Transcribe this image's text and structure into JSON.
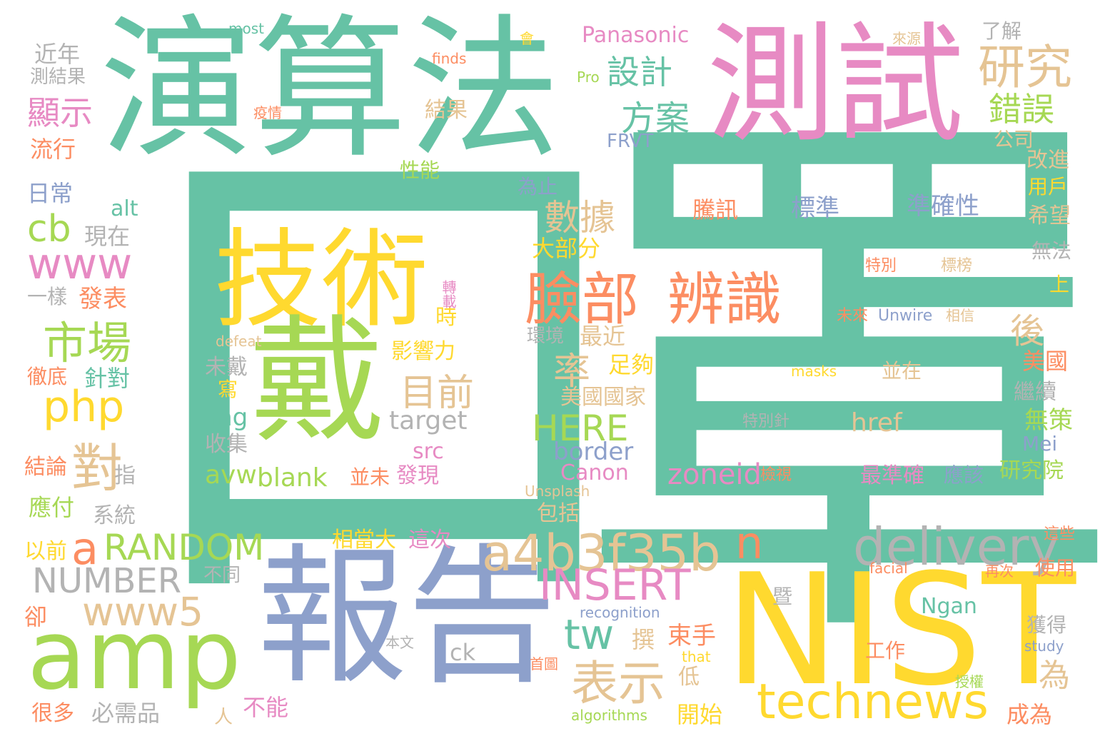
{
  "palette": {
    "green": "#66c2a5",
    "orange": "#fc8d62",
    "blue": "#8da0cb",
    "pink": "#e78ac3",
    "lime": "#a6d854",
    "yellow": "#ffd92f",
    "tan": "#e5c494",
    "gray": "#b3b3b3"
  },
  "words": [
    {
      "text": "口",
      "color": "green"
    },
    {
      "text": "罩",
      "color": "green"
    },
    {
      "text": "演算法",
      "color": "green"
    },
    {
      "text": "測試",
      "color": "pink"
    },
    {
      "text": "技術",
      "color": "yellow"
    },
    {
      "text": "戴",
      "color": "lime"
    },
    {
      "text": "報告",
      "color": "blue"
    },
    {
      "text": "NIST",
      "color": "yellow"
    },
    {
      "text": "amp",
      "color": "lime"
    },
    {
      "text": "臉部",
      "color": "orange"
    },
    {
      "text": "辨識",
      "color": "orange"
    },
    {
      "text": "technews",
      "color": "yellow"
    },
    {
      "text": "delivery",
      "color": "gray"
    },
    {
      "text": "a4b3f35b",
      "color": "tan"
    },
    {
      "text": "INSERT",
      "color": "pink"
    },
    {
      "text": "RANDOM",
      "color": "lime"
    },
    {
      "text": "NUMBER",
      "color": "gray"
    },
    {
      "text": "www5",
      "color": "tan"
    },
    {
      "text": "www",
      "color": "pink"
    },
    {
      "text": "php",
      "color": "yellow"
    },
    {
      "text": "cb",
      "color": "lime"
    },
    {
      "text": "市場",
      "color": "lime"
    },
    {
      "text": "研究",
      "color": "tan"
    },
    {
      "text": "錯誤",
      "color": "lime"
    },
    {
      "text": "設計",
      "color": "green"
    },
    {
      "text": "方案",
      "color": "green"
    },
    {
      "text": "數據",
      "color": "tan"
    },
    {
      "text": "顯示",
      "color": "pink"
    },
    {
      "text": "表示",
      "color": "tan"
    },
    {
      "text": "目前",
      "color": "tan"
    },
    {
      "text": "對",
      "color": "tan"
    },
    {
      "text": "tw",
      "color": "green"
    },
    {
      "text": "n",
      "color": "orange"
    },
    {
      "text": "a",
      "color": "orange"
    },
    {
      "text": "HERE",
      "color": "lime"
    },
    {
      "text": "率",
      "color": "tan"
    },
    {
      "text": "後",
      "color": "tan"
    },
    {
      "text": "zoneid",
      "color": "pink"
    },
    {
      "text": "target",
      "color": "gray"
    },
    {
      "text": "Panasonic",
      "color": "pink"
    },
    {
      "text": "border",
      "color": "blue"
    },
    {
      "text": "Canon",
      "color": "pink"
    },
    {
      "text": "href",
      "color": "tan"
    },
    {
      "text": "blank",
      "color": "lime"
    },
    {
      "text": "avw",
      "color": "lime"
    },
    {
      "text": "img",
      "color": "green"
    },
    {
      "text": "src",
      "color": "pink"
    },
    {
      "text": "Ngan",
      "color": "green"
    },
    {
      "text": "Mei",
      "color": "blue"
    },
    {
      "text": "ck",
      "color": "gray"
    },
    {
      "text": "alt",
      "color": "green"
    },
    {
      "text": "FRVT",
      "color": "blue"
    },
    {
      "text": "騰訊",
      "color": "orange"
    },
    {
      "text": "標準",
      "color": "blue"
    },
    {
      "text": "準確性",
      "color": "blue"
    },
    {
      "text": "近年",
      "color": "gray"
    },
    {
      "text": "測結果",
      "color": "gray"
    },
    {
      "text": "流行",
      "color": "orange"
    },
    {
      "text": "日常",
      "color": "blue"
    },
    {
      "text": "現在",
      "color": "gray"
    },
    {
      "text": "一樣",
      "color": "gray"
    },
    {
      "text": "發表",
      "color": "orange"
    },
    {
      "text": "徹底",
      "color": "orange"
    },
    {
      "text": "針對",
      "color": "green"
    },
    {
      "text": "結論",
      "color": "orange"
    },
    {
      "text": "指",
      "color": "gray"
    },
    {
      "text": "應付",
      "color": "lime"
    },
    {
      "text": "系統",
      "color": "gray"
    },
    {
      "text": "以前",
      "color": "yellow"
    },
    {
      "text": "不同",
      "color": "gray"
    },
    {
      "text": "卻",
      "color": "orange"
    },
    {
      "text": "很多",
      "color": "orange"
    },
    {
      "text": "必需品",
      "color": "gray"
    },
    {
      "text": "人",
      "color": "tan"
    },
    {
      "text": "不能",
      "color": "pink"
    },
    {
      "text": "低",
      "color": "tan"
    },
    {
      "text": "開始",
      "color": "yellow"
    },
    {
      "text": "撰",
      "color": "tan"
    },
    {
      "text": "束手",
      "color": "orange"
    },
    {
      "text": "為",
      "color": "tan"
    },
    {
      "text": "成為",
      "color": "orange"
    },
    {
      "text": "使用",
      "color": "orange"
    },
    {
      "text": "獲得",
      "color": "gray"
    },
    {
      "text": "工作",
      "color": "orange"
    },
    {
      "text": "暨",
      "color": "gray"
    },
    {
      "text": "本文",
      "color": "gray"
    },
    {
      "text": "首圖",
      "color": "orange"
    },
    {
      "text": "授權",
      "color": "lime"
    },
    {
      "text": "再次",
      "color": "orange"
    },
    {
      "text": "這些",
      "color": "orange"
    },
    {
      "text": "研究院",
      "color": "lime"
    },
    {
      "text": "應該",
      "color": "blue"
    },
    {
      "text": "最準確",
      "color": "pink"
    },
    {
      "text": "檢視",
      "color": "orange"
    },
    {
      "text": "無策",
      "color": "lime"
    },
    {
      "text": "繼續",
      "color": "gray"
    },
    {
      "text": "美國",
      "color": "orange"
    },
    {
      "text": "並在",
      "color": "tan"
    },
    {
      "text": "特別針",
      "color": "gray"
    },
    {
      "text": "相信",
      "color": "tan"
    },
    {
      "text": "未來",
      "color": "orange"
    },
    {
      "text": "上",
      "color": "yellow"
    },
    {
      "text": "特別",
      "color": "orange"
    },
    {
      "text": "標榜",
      "color": "tan"
    },
    {
      "text": "無法",
      "color": "gray"
    },
    {
      "text": "希望",
      "color": "tan"
    },
    {
      "text": "用戶",
      "color": "yellow"
    },
    {
      "text": "改進",
      "color": "tan"
    },
    {
      "text": "公司",
      "color": "tan"
    },
    {
      "text": "了解",
      "color": "gray"
    },
    {
      "text": "來源",
      "color": "tan"
    },
    {
      "text": "會",
      "color": "yellow"
    },
    {
      "text": "Pro",
      "color": "lime"
    },
    {
      "text": "finds",
      "color": "orange"
    },
    {
      "text": "most",
      "color": "green"
    },
    {
      "text": "疫情",
      "color": "orange"
    },
    {
      "text": "結果",
      "color": "tan"
    },
    {
      "text": "性能",
      "color": "lime"
    },
    {
      "text": "為止",
      "color": "blue"
    },
    {
      "text": "大部分",
      "color": "yellow"
    },
    {
      "text": "最近",
      "color": "tan"
    },
    {
      "text": "足夠",
      "color": "yellow"
    },
    {
      "text": "影響力",
      "color": "yellow"
    },
    {
      "text": "環境",
      "color": "gray"
    },
    {
      "text": "美國國家",
      "color": "tan"
    },
    {
      "text": "時",
      "color": "yellow"
    },
    {
      "text": "轉載",
      "color": "pink"
    },
    {
      "text": "defeat",
      "color": "tan"
    },
    {
      "text": "未戴",
      "color": "gray"
    },
    {
      "text": "寫",
      "color": "yellow"
    },
    {
      "text": "收集",
      "color": "gray"
    },
    {
      "text": "並未",
      "color": "orange"
    },
    {
      "text": "發現",
      "color": "pink"
    },
    {
      "text": "包括",
      "color": "tan"
    },
    {
      "text": "相當大",
      "color": "yellow"
    },
    {
      "text": "這次",
      "color": "pink"
    },
    {
      "text": "Unsplash",
      "color": "tan"
    },
    {
      "text": "Unwire",
      "color": "blue"
    },
    {
      "text": "masks",
      "color": "yellow"
    },
    {
      "text": "facial",
      "color": "orange"
    },
    {
      "text": "recognition",
      "color": "blue"
    },
    {
      "text": "that",
      "color": "yellow"
    },
    {
      "text": "study",
      "color": "blue"
    },
    {
      "text": "algorithms",
      "color": "lime"
    }
  ]
}
